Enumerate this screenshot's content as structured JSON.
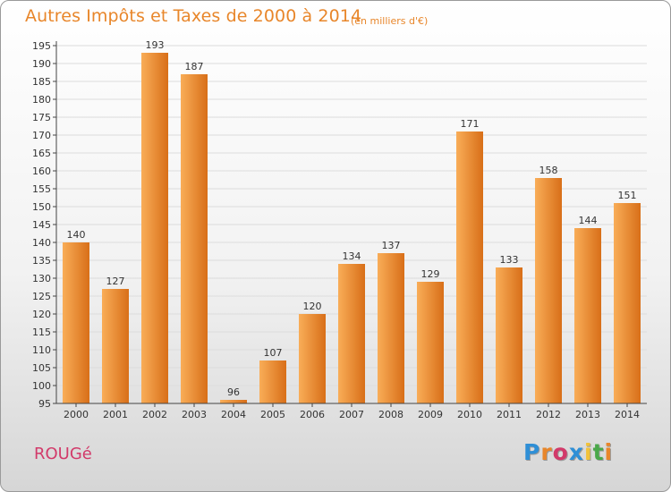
{
  "header": {
    "title": "Autres Impôts et Taxes de 2000 à 2014",
    "subtitle": "(en milliers d'€)"
  },
  "footer": {
    "commune": "ROUGé",
    "logo_letters": [
      "P",
      "r",
      "o",
      "x",
      "i",
      "t",
      "i"
    ],
    "logo_colors": [
      "#2f8fd6",
      "#e8862a",
      "#d23a6a",
      "#2f8fd6",
      "#f2c23a",
      "#4aa84a",
      "#e8862a"
    ]
  },
  "colors": {
    "bar_light": "#f9ad58",
    "bar_dark": "#d86f18",
    "grid": "#dcdcdc",
    "axis": "#444444",
    "text": "#333333"
  },
  "chart_data": {
    "type": "bar",
    "categories": [
      "2000",
      "2001",
      "2002",
      "2003",
      "2004",
      "2005",
      "2006",
      "2007",
      "2008",
      "2009",
      "2010",
      "2011",
      "2012",
      "2013",
      "2014"
    ],
    "values": [
      140,
      127,
      193,
      187,
      96,
      107,
      120,
      134,
      137,
      129,
      171,
      133,
      158,
      144,
      151
    ],
    "title": "Autres Impôts et Taxes de 2000 à 2014",
    "subtitle": "(en milliers d'€)",
    "xlabel": "",
    "ylabel": "",
    "ylim": [
      95,
      195
    ],
    "yticks": [
      95,
      100,
      105,
      110,
      115,
      120,
      125,
      130,
      135,
      140,
      145,
      150,
      155,
      160,
      165,
      170,
      175,
      180,
      185,
      190,
      195
    ],
    "grid": true,
    "legend": "none"
  }
}
